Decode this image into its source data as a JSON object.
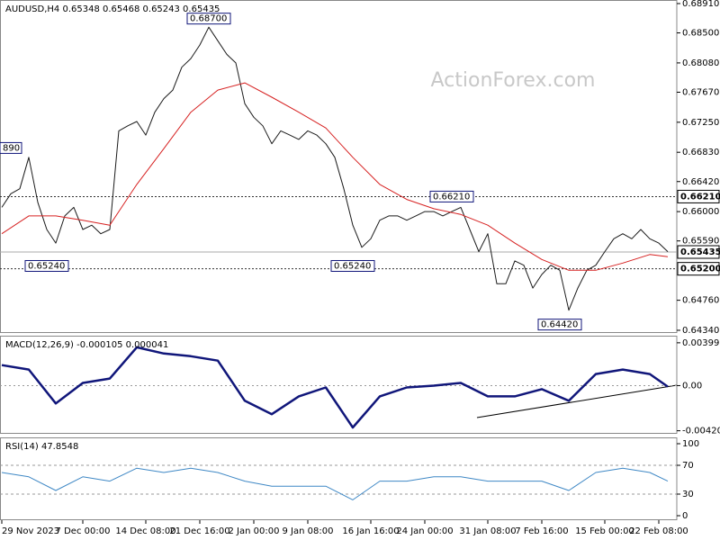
{
  "chart_data": [
    {
      "type": "line",
      "title": "AUDUSD,H4  0.65348 0.65468 0.65243 0.65435",
      "watermark": "ActionForex.com",
      "xlim": [
        0,
        74
      ],
      "xticks": [
        {
          "value": 0,
          "label": "29 Nov 2023"
        },
        {
          "value": 9,
          "label": "7 Dec 00:00"
        },
        {
          "value": 16,
          "label": "14 Dec 08:00"
        },
        {
          "value": 22,
          "label": "21 Dec 16:00"
        },
        {
          "value": 28,
          "label": "2 Jan 00:00"
        },
        {
          "value": 34,
          "label": "9 Jan 08:00"
        },
        {
          "value": 41,
          "label": "16 Jan 16:00"
        },
        {
          "value": 47,
          "label": "24 Jan 00:00"
        },
        {
          "value": 54,
          "label": "31 Jan 08:00"
        },
        {
          "value": 60,
          "label": "7 Feb 16:00"
        },
        {
          "value": 67,
          "label": "15 Feb 00:00"
        },
        {
          "value": 73,
          "label": "22 Feb 08:00"
        }
      ],
      "ylim": [
        0.64302,
        0.6896
      ],
      "yticks": [
        {
          "value": 0.6891,
          "label": "0.68910"
        },
        {
          "value": 0.685,
          "label": "0.68500"
        },
        {
          "value": 0.6808,
          "label": "0.68080"
        },
        {
          "value": 0.6767,
          "label": "0.67670"
        },
        {
          "value": 0.6725,
          "label": "0.67250"
        },
        {
          "value": 0.6683,
          "label": "0.66830"
        },
        {
          "value": 0.6642,
          "label": "0.66420"
        },
        {
          "value": 0.66,
          "label": "0.66000"
        },
        {
          "value": 0.6559,
          "label": "0.65590"
        },
        {
          "value": 0.6476,
          "label": "0.64760"
        },
        {
          "value": 0.6434,
          "label": "0.64340"
        }
      ],
      "levels": [
        {
          "value": 0.6621,
          "label": "0.66210",
          "style": "dotted"
        },
        {
          "value": 0.65435,
          "label": "0.65435",
          "style": "solid"
        },
        {
          "value": 0.652,
          "label": "0.65200",
          "style": "dotted"
        }
      ],
      "annotations": [
        {
          "x": 23,
          "value": 0.687,
          "label": "0.68700"
        },
        {
          "x": 0,
          "value": 0.6689,
          "label": "890"
        },
        {
          "x": 50,
          "value": 0.6621,
          "label": "0.66210"
        },
        {
          "x": 5,
          "value": 0.6524,
          "label": "0.65240"
        },
        {
          "x": 39,
          "value": 0.6524,
          "label": "0.65240"
        },
        {
          "x": 62,
          "value": 0.6442,
          "label": "0.64420"
        }
      ],
      "series": [
        {
          "name": "AUDUSD",
          "color": "#1a1a1a",
          "width": 1,
          "x": [
            0,
            1,
            2,
            3,
            4,
            5,
            6,
            7,
            8,
            9,
            10,
            11,
            12,
            13,
            14,
            15,
            16,
            17,
            18,
            19,
            20,
            21,
            22,
            23,
            24,
            25,
            26,
            27,
            28,
            29,
            30,
            31,
            32,
            33,
            34,
            35,
            36,
            37,
            38,
            39,
            40,
            41,
            42,
            43,
            44,
            45,
            46,
            47,
            48,
            49,
            50,
            51,
            52,
            53,
            54,
            55,
            56,
            57,
            58,
            59,
            60,
            61,
            62,
            63,
            64,
            65,
            66,
            67,
            68,
            69,
            70,
            71,
            72,
            73,
            74
          ],
          "values": [
            0.6606,
            0.6625,
            0.6632,
            0.6676,
            0.6613,
            0.6575,
            0.6556,
            0.6594,
            0.6606,
            0.6575,
            0.6581,
            0.6569,
            0.6575,
            0.6713,
            0.672,
            0.6726,
            0.6707,
            0.6739,
            0.6758,
            0.677,
            0.6802,
            0.6814,
            0.6833,
            0.6858,
            0.6839,
            0.682,
            0.6808,
            0.6751,
            0.6732,
            0.672,
            0.6695,
            0.6713,
            0.6707,
            0.6701,
            0.6713,
            0.6707,
            0.6695,
            0.6676,
            0.6632,
            0.6581,
            0.655,
            0.6562,
            0.6588,
            0.6594,
            0.6594,
            0.6588,
            0.6594,
            0.66,
            0.66,
            0.6594,
            0.66,
            0.6606,
            0.6575,
            0.6544,
            0.6569,
            0.6499,
            0.6499,
            0.6531,
            0.6525,
            0.6493,
            0.6512,
            0.6525,
            0.6518,
            0.6462,
            0.6493,
            0.6518,
            0.6525,
            0.6544,
            0.6562,
            0.6569,
            0.6562,
            0.6575,
            0.6562,
            0.6556,
            0.6544
          ]
        },
        {
          "name": "MA",
          "color": "#d62020",
          "width": 1,
          "x": [
            0,
            3,
            6,
            9,
            12,
            15,
            18,
            21,
            24,
            27,
            30,
            33,
            36,
            39,
            42,
            45,
            48,
            51,
            54,
            57,
            60,
            63,
            66,
            69,
            72,
            74
          ],
          "values": [
            0.6569,
            0.6594,
            0.6594,
            0.6588,
            0.6581,
            0.6638,
            0.6688,
            0.6739,
            0.677,
            0.678,
            0.676,
            0.6739,
            0.6717,
            0.6676,
            0.6638,
            0.6617,
            0.6604,
            0.6596,
            0.6581,
            0.6556,
            0.6533,
            0.6518,
            0.6518,
            0.6528,
            0.654,
            0.6537
          ]
        }
      ]
    },
    {
      "type": "line",
      "title": "MACD(12,26,9) -0.000105 0.000041",
      "ylim": [
        -0.00449,
        0.00465
      ],
      "yticks": [
        0.00399,
        {
          "value": 0,
          "label": "0.00"
        },
        -0.004206
      ],
      "series": [
        {
          "name": "MACD",
          "color": "#10167a",
          "width": 2.5,
          "x": [
            0,
            3,
            6,
            9,
            12,
            15,
            18,
            21,
            24,
            27,
            30,
            33,
            36,
            39,
            42,
            45,
            48,
            51,
            54,
            57,
            60,
            63,
            66,
            69,
            72,
            74
          ],
          "values": [
            0.00191,
            0.0015,
            -0.00166,
            0.00025,
            0.00066,
            0.00357,
            0.00299,
            0.00274,
            0.00233,
            -0.00141,
            -0.00266,
            -0.001,
            -0.00017,
            -0.0039,
            -0.001,
            -0.00017,
            0,
            0.00025,
            -0.001,
            -0.001,
            -0.00033,
            -0.00141,
            0.00108,
            0.0015,
            0.00108,
            -0.0001
          ]
        }
      ]
    },
    {
      "type": "line",
      "title": "RSI(14) 47.8548",
      "ylim": [
        -6.25,
        108.75
      ],
      "yticks": [
        100,
        70,
        30,
        0
      ],
      "series": [
        {
          "name": "RSI",
          "color": "#3f88c5",
          "width": 1,
          "x": [
            0,
            3,
            6,
            9,
            12,
            15,
            18,
            21,
            24,
            27,
            30,
            33,
            36,
            39,
            42,
            45,
            48,
            51,
            54,
            57,
            60,
            63,
            66,
            69,
            72,
            74
          ],
          "values": [
            60,
            54,
            35,
            54,
            48,
            66,
            60,
            66,
            60,
            48,
            41,
            41,
            41,
            22,
            48,
            48,
            54,
            54,
            48,
            48,
            48,
            35,
            60,
            66,
            60,
            48
          ]
        }
      ]
    }
  ]
}
